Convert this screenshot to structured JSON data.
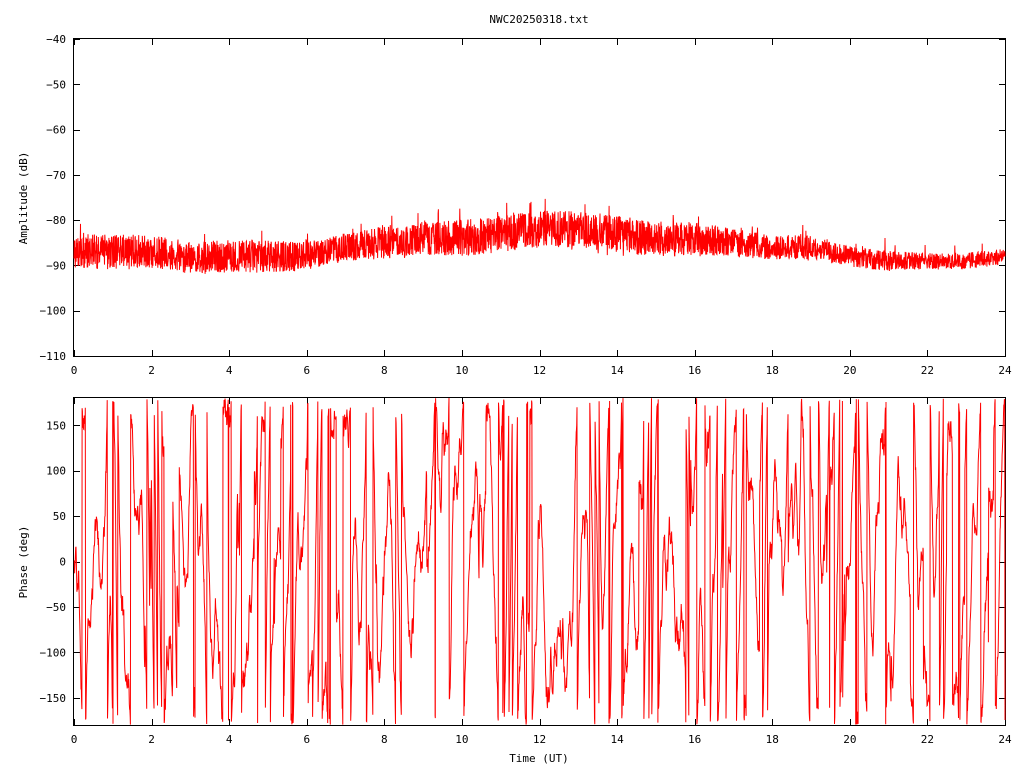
{
  "title": "NWC20250318.txt",
  "colors": {
    "trace": "#ff0000",
    "frame": "#000000",
    "background": "#ffffff"
  },
  "chart_data": [
    {
      "type": "line",
      "title": "NWC20250318.txt",
      "xlabel": "",
      "ylabel": "Amplitude (dB)",
      "xlim": [
        0,
        24
      ],
      "ylim": [
        -110,
        -40
      ],
      "xticks": [
        0,
        2,
        4,
        6,
        8,
        10,
        12,
        14,
        16,
        18,
        20,
        22,
        24
      ],
      "yticks": [
        -40,
        -50,
        -60,
        -70,
        -80,
        -90,
        -100,
        -110
      ],
      "grid": false,
      "series": [
        {
          "envelope": {
            "x": [
              0,
              1,
              2,
              3,
              4,
              5,
              6,
              7,
              8,
              9,
              10,
              11,
              12,
              13,
              14,
              15,
              16,
              17,
              18,
              19,
              20,
              21,
              22,
              23,
              24
            ],
            "y_upper": [
              -83,
              -82,
              -83,
              -84,
              -84,
              -84,
              -84,
              -82,
              -81,
              -80,
              -79,
              -78,
              -77,
              -78,
              -79,
              -80,
              -80,
              -81,
              -83,
              -83,
              -85,
              -86,
              -87,
              -87,
              -86
            ],
            "y_mean": [
              -87,
              -87,
              -87,
              -88,
              -88,
              -88,
              -88,
              -86,
              -85,
              -84,
              -84,
              -83,
              -82,
              -82,
              -83,
              -84,
              -84,
              -85,
              -86,
              -86,
              -88,
              -89,
              -89,
              -89,
              -88
            ],
            "y_lower": [
              -91,
              -91,
              -91,
              -92,
              -92,
              -92,
              -91,
              -89,
              -89,
              -88,
              -88,
              -87,
              -86,
              -87,
              -88,
              -88,
              -88,
              -88,
              -89,
              -89,
              -90,
              -91,
              -91,
              -91,
              -90
            ]
          }
        }
      ]
    },
    {
      "type": "line",
      "xlabel": "Time (UT)",
      "ylabel": "Phase (deg)",
      "xlim": [
        0,
        24
      ],
      "ylim": [
        -180,
        180
      ],
      "xticks": [
        0,
        2,
        4,
        6,
        8,
        10,
        12,
        14,
        16,
        18,
        20,
        22,
        24
      ],
      "yticks": [
        150,
        100,
        50,
        0,
        -50,
        -100,
        -150
      ],
      "grid": false,
      "series": [
        {
          "range": [
            -180,
            180
          ]
        }
      ]
    }
  ]
}
